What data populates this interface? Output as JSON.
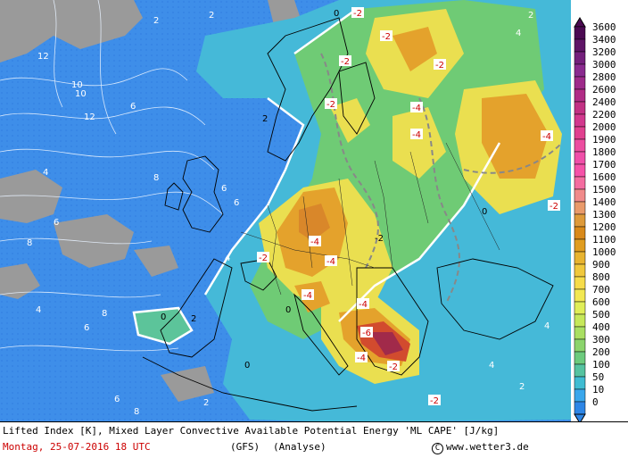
{
  "legend": {
    "levels": [
      "3600",
      "3400",
      "3200",
      "3000",
      "2800",
      "2600",
      "2400",
      "2200",
      "2000",
      "1900",
      "1800",
      "1700",
      "1600",
      "1500",
      "1400",
      "1300",
      "1200",
      "1100",
      "1000",
      "900",
      "800",
      "700",
      "600",
      "500",
      "400",
      "300",
      "200",
      "100",
      "50",
      "10",
      "0"
    ],
    "colors": [
      "#4b0a52",
      "#5e1466",
      "#74207c",
      "#8a2a8f",
      "#9e2a8a",
      "#b02c86",
      "#c23184",
      "#d2388e",
      "#e0408f",
      "#ec4da0",
      "#f04fa9",
      "#f552a8",
      "#f46ca0",
      "#f08a8a",
      "#e99a6a",
      "#de9a3a",
      "#d98a1a",
      "#e09d20",
      "#e8b430",
      "#f0c83c",
      "#f6dc4a",
      "#f2e852",
      "#e0ee58",
      "#c6e85a",
      "#a9df62",
      "#8bd46c",
      "#6ccb7d",
      "#55c3a0",
      "#3fbcd2",
      "#3aa7ec",
      "#2d86e6"
    ]
  },
  "map_labels": {
    "li_values": [
      "2",
      "2",
      "12",
      "10",
      "10",
      "12",
      "6",
      "4",
      "6",
      "8",
      "8",
      "6",
      "4",
      "6",
      "8",
      "4",
      "6",
      "0",
      "2",
      "0",
      "2",
      "-2",
      "-2",
      "-2",
      "-2",
      "-4",
      "-4",
      "-4",
      "-2",
      "-6",
      "-4",
      "-4",
      "-2",
      "-4",
      "-2",
      "-4",
      "-4",
      "-2",
      "-2",
      "0",
      "0",
      "-2",
      "0",
      "4",
      "2",
      "4",
      "8",
      "6",
      "4",
      "2",
      "2",
      "-2",
      "-2",
      "-2",
      "0",
      "-2",
      "-4",
      "-2",
      "2",
      "2",
      "4",
      "4",
      "6",
      "6"
    ]
  },
  "caption": {
    "line1": "Lifted Index [K], Mixed Layer Convective Available Potential Energy 'ML CAPE' [J/kg]",
    "date": "Montag, 25-07-2016  18 UTC",
    "model": "(GFS)",
    "mode": "(Analyse)",
    "copyright_symbol": "C",
    "site": "www.wetter3.de"
  }
}
